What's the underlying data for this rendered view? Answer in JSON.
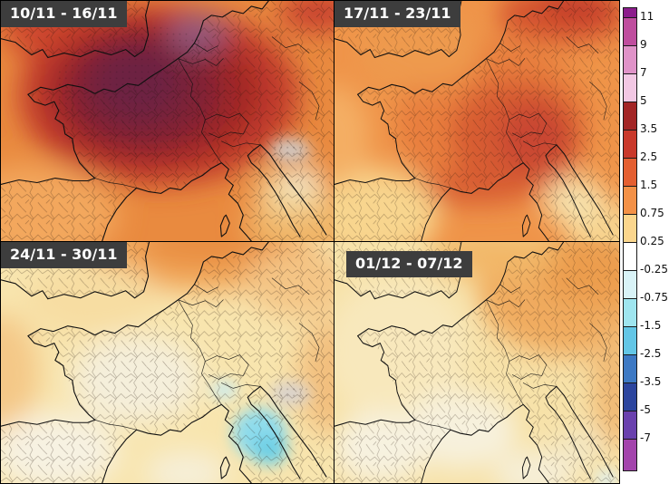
{
  "panels": [
    {
      "label": "10/11 - 16/11"
    },
    {
      "label": "17/11 - 23/11"
    },
    {
      "label": "24/11 - 30/11"
    },
    {
      "label": "01/12 - 07/12"
    }
  ],
  "legend": {
    "ticks": [
      "11",
      "9",
      "7",
      "5",
      "3.5",
      "2.5",
      "1.5",
      "0.75",
      "0.25",
      "-0.25",
      "-0.75",
      "-1.5",
      "-2.5",
      "-3.5",
      "-5",
      "-7"
    ],
    "segments": [
      "#8c1d8c",
      "#bf4e9e",
      "#df93c8",
      "#f2c8e4",
      "#a32626",
      "#c9392b",
      "#e45f31",
      "#f39147",
      "#fbd68d",
      "#ffffff",
      "#d9f3f7",
      "#9fe5ef",
      "#63c6e6",
      "#3d79c4",
      "#2c459e",
      "#6a41ae",
      "#a344ac"
    ]
  },
  "colors": {
    "panel_label_bg": "#3d3d3d",
    "panel_label_text": "#ffffff"
  }
}
